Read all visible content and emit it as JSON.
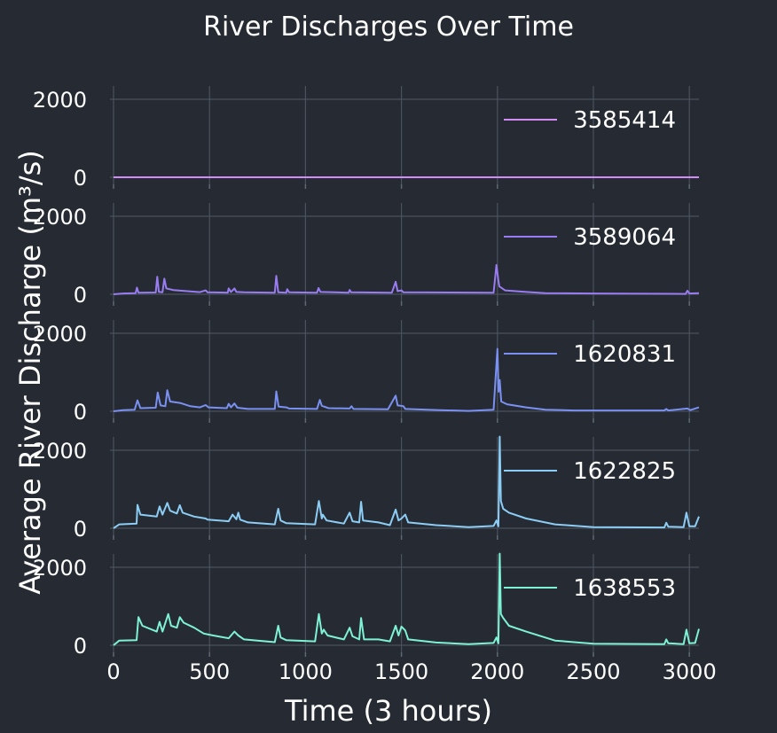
{
  "chart_data": {
    "type": "line",
    "title": "River Discharges Over Time",
    "xlabel": "Time (3 hours)",
    "ylabel": "Average River Discharge (m³/s)",
    "xlim": [
      0,
      3050
    ],
    "ylim": [
      -150,
      2050
    ],
    "x_ticks": [
      0,
      500,
      1000,
      1500,
      2000,
      2500,
      3000
    ],
    "y_ticks": [
      0,
      2000
    ],
    "grid": true,
    "legend_position": "upper right",
    "series": [
      {
        "name": "3585414",
        "color": "#d18cf5",
        "points": [
          [
            0,
            0
          ],
          [
            3050,
            0
          ]
        ]
      },
      {
        "name": "3589064",
        "color": "#9a7cf2",
        "points": [
          [
            0,
            0
          ],
          [
            50,
            20
          ],
          [
            115,
            30
          ],
          [
            122,
            170
          ],
          [
            130,
            40
          ],
          [
            220,
            45
          ],
          [
            228,
            450
          ],
          [
            236,
            60
          ],
          [
            255,
            50
          ],
          [
            265,
            400
          ],
          [
            275,
            150
          ],
          [
            310,
            110
          ],
          [
            450,
            55
          ],
          [
            480,
            100
          ],
          [
            490,
            50
          ],
          [
            595,
            40
          ],
          [
            600,
            150
          ],
          [
            612,
            60
          ],
          [
            630,
            150
          ],
          [
            640,
            60
          ],
          [
            680,
            50
          ],
          [
            840,
            40
          ],
          [
            848,
            470
          ],
          [
            858,
            50
          ],
          [
            900,
            40
          ],
          [
            905,
            130
          ],
          [
            915,
            50
          ],
          [
            1060,
            40
          ],
          [
            1068,
            160
          ],
          [
            1078,
            60
          ],
          [
            1225,
            40
          ],
          [
            1230,
            110
          ],
          [
            1238,
            50
          ],
          [
            1450,
            40
          ],
          [
            1470,
            320
          ],
          [
            1480,
            80
          ],
          [
            1500,
            100
          ],
          [
            1510,
            50
          ],
          [
            1980,
            40
          ],
          [
            1995,
            750
          ],
          [
            2005,
            350
          ],
          [
            2010,
            200
          ],
          [
            2040,
            100
          ],
          [
            2150,
            60
          ],
          [
            2250,
            30
          ],
          [
            2500,
            20
          ],
          [
            2980,
            10
          ],
          [
            2990,
            90
          ],
          [
            3000,
            20
          ],
          [
            3050,
            30
          ]
        ]
      },
      {
        "name": "1620831",
        "color": "#7a90f2",
        "points": [
          [
            0,
            0
          ],
          [
            50,
            30
          ],
          [
            110,
            40
          ],
          [
            125,
            280
          ],
          [
            140,
            80
          ],
          [
            220,
            90
          ],
          [
            230,
            480
          ],
          [
            245,
            150
          ],
          [
            270,
            130
          ],
          [
            280,
            540
          ],
          [
            295,
            250
          ],
          [
            350,
            210
          ],
          [
            400,
            130
          ],
          [
            450,
            100
          ],
          [
            480,
            160
          ],
          [
            495,
            100
          ],
          [
            590,
            80
          ],
          [
            600,
            190
          ],
          [
            612,
            100
          ],
          [
            630,
            200
          ],
          [
            645,
            90
          ],
          [
            700,
            60
          ],
          [
            840,
            60
          ],
          [
            848,
            510
          ],
          [
            860,
            120
          ],
          [
            900,
            100
          ],
          [
            915,
            70
          ],
          [
            1060,
            60
          ],
          [
            1075,
            290
          ],
          [
            1085,
            140
          ],
          [
            1120,
            80
          ],
          [
            1230,
            70
          ],
          [
            1240,
            130
          ],
          [
            1250,
            60
          ],
          [
            1430,
            50
          ],
          [
            1470,
            400
          ],
          [
            1480,
            150
          ],
          [
            1510,
            130
          ],
          [
            1520,
            60
          ],
          [
            1700,
            30
          ],
          [
            1850,
            10
          ],
          [
            1980,
            40
          ],
          [
            2000,
            1600
          ],
          [
            2006,
            500
          ],
          [
            2012,
            800
          ],
          [
            2020,
            250
          ],
          [
            2050,
            180
          ],
          [
            2150,
            100
          ],
          [
            2250,
            40
          ],
          [
            2400,
            20
          ],
          [
            2870,
            20
          ],
          [
            2880,
            60
          ],
          [
            2890,
            20
          ],
          [
            2990,
            70
          ],
          [
            3005,
            30
          ],
          [
            3050,
            100
          ]
        ]
      },
      {
        "name": "1622825",
        "color": "#8ccdf5",
        "points": [
          [
            0,
            0
          ],
          [
            30,
            100
          ],
          [
            120,
            120
          ],
          [
            125,
            600
          ],
          [
            140,
            350
          ],
          [
            225,
            300
          ],
          [
            240,
            560
          ],
          [
            255,
            350
          ],
          [
            280,
            650
          ],
          [
            295,
            450
          ],
          [
            330,
            380
          ],
          [
            345,
            590
          ],
          [
            360,
            400
          ],
          [
            420,
            300
          ],
          [
            480,
            250
          ],
          [
            490,
            220
          ],
          [
            600,
            180
          ],
          [
            620,
            350
          ],
          [
            640,
            230
          ],
          [
            650,
            400
          ],
          [
            660,
            220
          ],
          [
            700,
            150
          ],
          [
            840,
            100
          ],
          [
            858,
            500
          ],
          [
            870,
            200
          ],
          [
            900,
            130
          ],
          [
            1050,
            100
          ],
          [
            1070,
            700
          ],
          [
            1085,
            250
          ],
          [
            1090,
            350
          ],
          [
            1110,
            200
          ],
          [
            1200,
            120
          ],
          [
            1230,
            400
          ],
          [
            1245,
            180
          ],
          [
            1280,
            150
          ],
          [
            1290,
            680
          ],
          [
            1300,
            200
          ],
          [
            1380,
            150
          ],
          [
            1440,
            80
          ],
          [
            1470,
            480
          ],
          [
            1485,
            200
          ],
          [
            1500,
            250
          ],
          [
            1520,
            350
          ],
          [
            1535,
            150
          ],
          [
            1680,
            80
          ],
          [
            1850,
            30
          ],
          [
            1980,
            60
          ],
          [
            1995,
            200
          ],
          [
            2005,
            50
          ],
          [
            2012,
            2350
          ],
          [
            2018,
            700
          ],
          [
            2030,
            500
          ],
          [
            2060,
            400
          ],
          [
            2150,
            250
          ],
          [
            2300,
            100
          ],
          [
            2500,
            30
          ],
          [
            2870,
            20
          ],
          [
            2880,
            140
          ],
          [
            2890,
            40
          ],
          [
            2970,
            30
          ],
          [
            2985,
            400
          ],
          [
            3000,
            50
          ],
          [
            3030,
            50
          ],
          [
            3050,
            300
          ]
        ]
      },
      {
        "name": "1638553",
        "color": "#7ef2d4",
        "points": [
          [
            0,
            0
          ],
          [
            30,
            120
          ],
          [
            120,
            130
          ],
          [
            130,
            720
          ],
          [
            150,
            500
          ],
          [
            225,
            350
          ],
          [
            240,
            600
          ],
          [
            255,
            350
          ],
          [
            285,
            800
          ],
          [
            300,
            500
          ],
          [
            330,
            450
          ],
          [
            345,
            720
          ],
          [
            365,
            580
          ],
          [
            420,
            450
          ],
          [
            470,
            300
          ],
          [
            520,
            250
          ],
          [
            600,
            180
          ],
          [
            630,
            350
          ],
          [
            650,
            250
          ],
          [
            680,
            150
          ],
          [
            840,
            80
          ],
          [
            858,
            500
          ],
          [
            870,
            200
          ],
          [
            900,
            130
          ],
          [
            1050,
            100
          ],
          [
            1070,
            800
          ],
          [
            1085,
            300
          ],
          [
            1095,
            400
          ],
          [
            1115,
            250
          ],
          [
            1200,
            150
          ],
          [
            1230,
            450
          ],
          [
            1245,
            230
          ],
          [
            1280,
            150
          ],
          [
            1290,
            700
          ],
          [
            1305,
            150
          ],
          [
            1380,
            150
          ],
          [
            1440,
            100
          ],
          [
            1470,
            500
          ],
          [
            1485,
            250
          ],
          [
            1500,
            480
          ],
          [
            1520,
            380
          ],
          [
            1535,
            150
          ],
          [
            1680,
            70
          ],
          [
            1850,
            30
          ],
          [
            1980,
            60
          ],
          [
            1995,
            200
          ],
          [
            2005,
            50
          ],
          [
            2012,
            2350
          ],
          [
            2018,
            800
          ],
          [
            2030,
            700
          ],
          [
            2060,
            500
          ],
          [
            2150,
            350
          ],
          [
            2300,
            120
          ],
          [
            2500,
            40
          ],
          [
            2870,
            30
          ],
          [
            2880,
            150
          ],
          [
            2890,
            50
          ],
          [
            2970,
            30
          ],
          [
            2985,
            400
          ],
          [
            3000,
            50
          ],
          [
            3030,
            60
          ],
          [
            3050,
            420
          ]
        ]
      }
    ]
  }
}
